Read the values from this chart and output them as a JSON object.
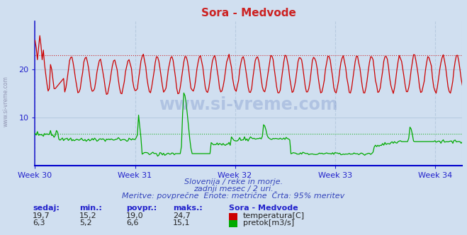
{
  "title": "Sora - Medvode",
  "background_color": "#d0dff0",
  "plot_bg_color": "#d0dff0",
  "x_labels": [
    "Week 30",
    "Week 31",
    "Week 32",
    "Week 33",
    "Week 34"
  ],
  "x_ticks_pos": [
    0,
    84,
    168,
    252,
    336
  ],
  "n_points": 360,
  "temp_min": 15.2,
  "temp_max": 24.7,
  "temp_avg": 19.0,
  "temp_current": 19.7,
  "flow_min": 5.2,
  "flow_max": 15.1,
  "flow_avg": 6.6,
  "flow_current": 6.3,
  "temp_color": "#cc0000",
  "flow_color": "#00aa00",
  "grid_color": "#b8cce0",
  "axis_color": "#2222cc",
  "text_color": "#2222cc",
  "title_color": "#cc2222",
  "info_color": "#3344bb",
  "watermark_color": "#3355aa",
  "watermark_text": "www.si-vreme.com",
  "subtitle1": "Slovenija / reke in morje.",
  "subtitle2": "zadnji mesec / 2 uri.",
  "subtitle3": "Meritve: povprečne  Enote: metrične  Črta: 95% meritev",
  "stat_headers": [
    "sedaj:",
    "min.:",
    "povpr.:",
    "maks.:"
  ],
  "legend_title": "Sora - Medvode",
  "legend_temp": "temperatura[C]",
  "legend_flow": "pretok[m3/s]",
  "ylim": [
    0,
    30
  ],
  "yticks": [
    10,
    20
  ],
  "temp_hline": 23.0,
  "flow_hline": 6.6,
  "dpi": 100,
  "figsize": [
    6.59,
    3.32
  ]
}
